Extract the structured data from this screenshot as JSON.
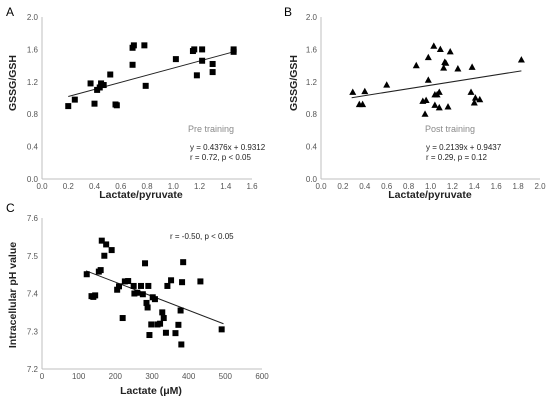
{
  "chart_data": [
    {
      "panel": "A",
      "type": "scatter",
      "xlabel": "Lactate/pyruvate",
      "ylabel": "GSSG/GSH",
      "xlim": [
        0,
        1.6
      ],
      "ylim": [
        0,
        2.0
      ],
      "x_ticks": [
        "0.0",
        "0.2",
        "0.4",
        "0.6",
        "0.8",
        "1.0",
        "1.2",
        "1.4",
        "1.6"
      ],
      "y_ticks": [
        "0.0",
        "0.4",
        "0.8",
        "1.2",
        "1.6",
        "2.0"
      ],
      "marker": "square",
      "annotation_title": "Pre training",
      "equation": "y = 0.4376x + 0.9312",
      "stats": "r = 0.72,  p < 0.05",
      "trend": {
        "slope": 0.4376,
        "intercept": 0.9312,
        "x_range": [
          0.2,
          1.46
        ]
      },
      "points": [
        [
          0.2,
          0.9
        ],
        [
          0.25,
          0.98
        ],
        [
          0.37,
          1.18
        ],
        [
          0.4,
          0.93
        ],
        [
          0.42,
          1.1
        ],
        [
          0.44,
          1.13
        ],
        [
          0.45,
          1.18
        ],
        [
          0.47,
          1.16
        ],
        [
          0.52,
          1.29
        ],
        [
          0.56,
          0.92
        ],
        [
          0.57,
          0.91
        ],
        [
          0.69,
          1.41
        ],
        [
          0.69,
          1.62
        ],
        [
          0.7,
          1.65
        ],
        [
          0.78,
          1.65
        ],
        [
          0.79,
          1.15
        ],
        [
          1.02,
          1.48
        ],
        [
          1.15,
          1.58
        ],
        [
          1.16,
          1.6
        ],
        [
          1.18,
          1.28
        ],
        [
          1.22,
          1.46
        ],
        [
          1.22,
          1.6
        ],
        [
          1.3,
          1.42
        ],
        [
          1.3,
          1.32
        ],
        [
          1.46,
          1.57
        ],
        [
          1.46,
          1.6
        ]
      ]
    },
    {
      "panel": "B",
      "type": "scatter",
      "xlabel": "Lactate/pyruvate",
      "ylabel": "GSSG/GSH",
      "xlim": [
        0,
        2.0
      ],
      "ylim": [
        0,
        2.0
      ],
      "x_ticks": [
        "0.0",
        "0.2",
        "0.4",
        "0.6",
        "0.8",
        "1.0",
        "1.2",
        "1.4",
        "1.6",
        "1.8",
        "2.0"
      ],
      "y_ticks": [
        "0.0",
        "0.4",
        "0.8",
        "1.2",
        "1.6",
        "2.0"
      ],
      "marker": "triangle",
      "annotation_title": "Post training",
      "equation": "y = 0.2139x + 0.9437",
      "stats": "r = 0.29,  p = 0.12",
      "trend": {
        "slope": 0.2139,
        "intercept": 0.9437,
        "x_range": [
          0.28,
          1.83
        ]
      },
      "points": [
        [
          0.29,
          1.07
        ],
        [
          0.35,
          0.92
        ],
        [
          0.38,
          0.92
        ],
        [
          0.4,
          1.08
        ],
        [
          0.6,
          1.16
        ],
        [
          0.87,
          1.4
        ],
        [
          0.93,
          0.96
        ],
        [
          0.95,
          0.8
        ],
        [
          0.96,
          0.97
        ],
        [
          0.98,
          1.22
        ],
        [
          0.98,
          1.5
        ],
        [
          1.03,
          1.64
        ],
        [
          1.04,
          1.04
        ],
        [
          1.04,
          0.91
        ],
        [
          1.06,
          1.04
        ],
        [
          1.08,
          1.07
        ],
        [
          1.08,
          0.88
        ],
        [
          1.09,
          1.6
        ],
        [
          1.12,
          1.37
        ],
        [
          1.13,
          1.44
        ],
        [
          1.14,
          1.43
        ],
        [
          1.16,
          0.89
        ],
        [
          1.18,
          1.57
        ],
        [
          1.25,
          1.36
        ],
        [
          1.37,
          1.07
        ],
        [
          1.38,
          1.38
        ],
        [
          1.4,
          0.94
        ],
        [
          1.41,
          1.0
        ],
        [
          1.45,
          0.98
        ],
        [
          1.83,
          1.47
        ]
      ]
    },
    {
      "panel": "C",
      "type": "scatter",
      "xlabel": "Lactate (μM)",
      "ylabel": "Intracellular pH value",
      "xlim": [
        0,
        600
      ],
      "ylim": [
        7.2,
        7.6
      ],
      "x_ticks": [
        "0",
        "100",
        "200",
        "300",
        "400",
        "500",
        "600"
      ],
      "y_ticks": [
        "7.2",
        "7.3",
        "7.4",
        "7.5",
        "7.6"
      ],
      "marker": "square",
      "annotation_title": "",
      "equation": "",
      "stats": "r = -0.50,  p < 0.05",
      "trend": {
        "slope": -0.000374,
        "intercept": 7.505,
        "x_range": [
          120,
          495
        ]
      },
      "points": [
        [
          122,
          7.451
        ],
        [
          135,
          7.393
        ],
        [
          140,
          7.391
        ],
        [
          145,
          7.395
        ],
        [
          155,
          7.458
        ],
        [
          160,
          7.462
        ],
        [
          163,
          7.54
        ],
        [
          170,
          7.5
        ],
        [
          175,
          7.53
        ],
        [
          190,
          7.515
        ],
        [
          205,
          7.41
        ],
        [
          210,
          7.419
        ],
        [
          220,
          7.335
        ],
        [
          226,
          7.432
        ],
        [
          235,
          7.433
        ],
        [
          250,
          7.42
        ],
        [
          252,
          7.4
        ],
        [
          260,
          7.402
        ],
        [
          270,
          7.42
        ],
        [
          275,
          7.398
        ],
        [
          281,
          7.48
        ],
        [
          285,
          7.375
        ],
        [
          288,
          7.363
        ],
        [
          290,
          7.42
        ],
        [
          293,
          7.29
        ],
        [
          298,
          7.318
        ],
        [
          302,
          7.39
        ],
        [
          308,
          7.385
        ],
        [
          315,
          7.318
        ],
        [
          322,
          7.32
        ],
        [
          328,
          7.35
        ],
        [
          332,
          7.335
        ],
        [
          338,
          7.296
        ],
        [
          342,
          7.42
        ],
        [
          352,
          7.435
        ],
        [
          364,
          7.295
        ],
        [
          372,
          7.317
        ],
        [
          378,
          7.355
        ],
        [
          380,
          7.265
        ],
        [
          382,
          7.43
        ],
        [
          385,
          7.483
        ],
        [
          432,
          7.432
        ],
        [
          490,
          7.305
        ]
      ]
    }
  ],
  "panel_labels": [
    "A",
    "B",
    "C"
  ]
}
